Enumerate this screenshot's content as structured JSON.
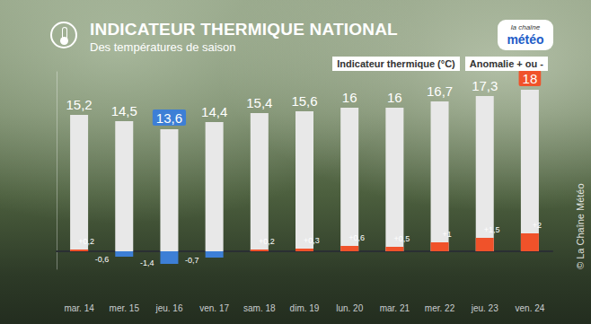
{
  "chart_data": {
    "type": "bar",
    "title": "INDICATEUR THERMIQUE NATIONAL",
    "subtitle": "Des températures de saison",
    "logo": [
      "la chaîne",
      "météo"
    ],
    "source": "© La Chaîne Météo",
    "categories": [
      "mar. 14",
      "mer. 15",
      "jeu. 16",
      "ven. 17",
      "sam. 18",
      "dim. 19",
      "lun. 20",
      "mar. 21",
      "mer. 22",
      "jeu. 23",
      "ven. 24"
    ],
    "series": [
      {
        "name": "Indicateur thermique (°C)",
        "color": "#e8e8e8",
        "values": [
          15.2,
          14.5,
          13.6,
          14.4,
          15.4,
          15.6,
          16,
          16,
          16.7,
          17.3,
          18
        ],
        "value_labels": [
          "15,2",
          "14,5",
          "13,6",
          "14,4",
          "15,4",
          "15,6",
          "16",
          "16",
          "16,7",
          "17,3",
          "18"
        ]
      },
      {
        "name": "Anomalie + ou -",
        "colors": [
          "#f0522a",
          "#3d7fd6",
          "#3d7fd6",
          "#3d7fd6",
          "#f0522a",
          "#f0522a",
          "#f0522a",
          "#f0522a",
          "#f0522a",
          "#f0522a",
          "#f0522a"
        ],
        "values": [
          0.2,
          -0.6,
          -1.4,
          -0.7,
          0.2,
          0.3,
          0.6,
          0.5,
          1,
          1.5,
          2
        ],
        "value_labels": [
          "+0,2",
          "-0,6",
          "-1,4",
          "-0,7",
          "+0,2",
          "+0,3",
          "+0,6",
          "+0,5",
          "+1",
          "+1,5",
          "+2"
        ]
      }
    ],
    "ylim": [
      -2,
      20
    ],
    "grid": false,
    "data_labels": true,
    "tick_labels": "x",
    "legend": "top right"
  }
}
